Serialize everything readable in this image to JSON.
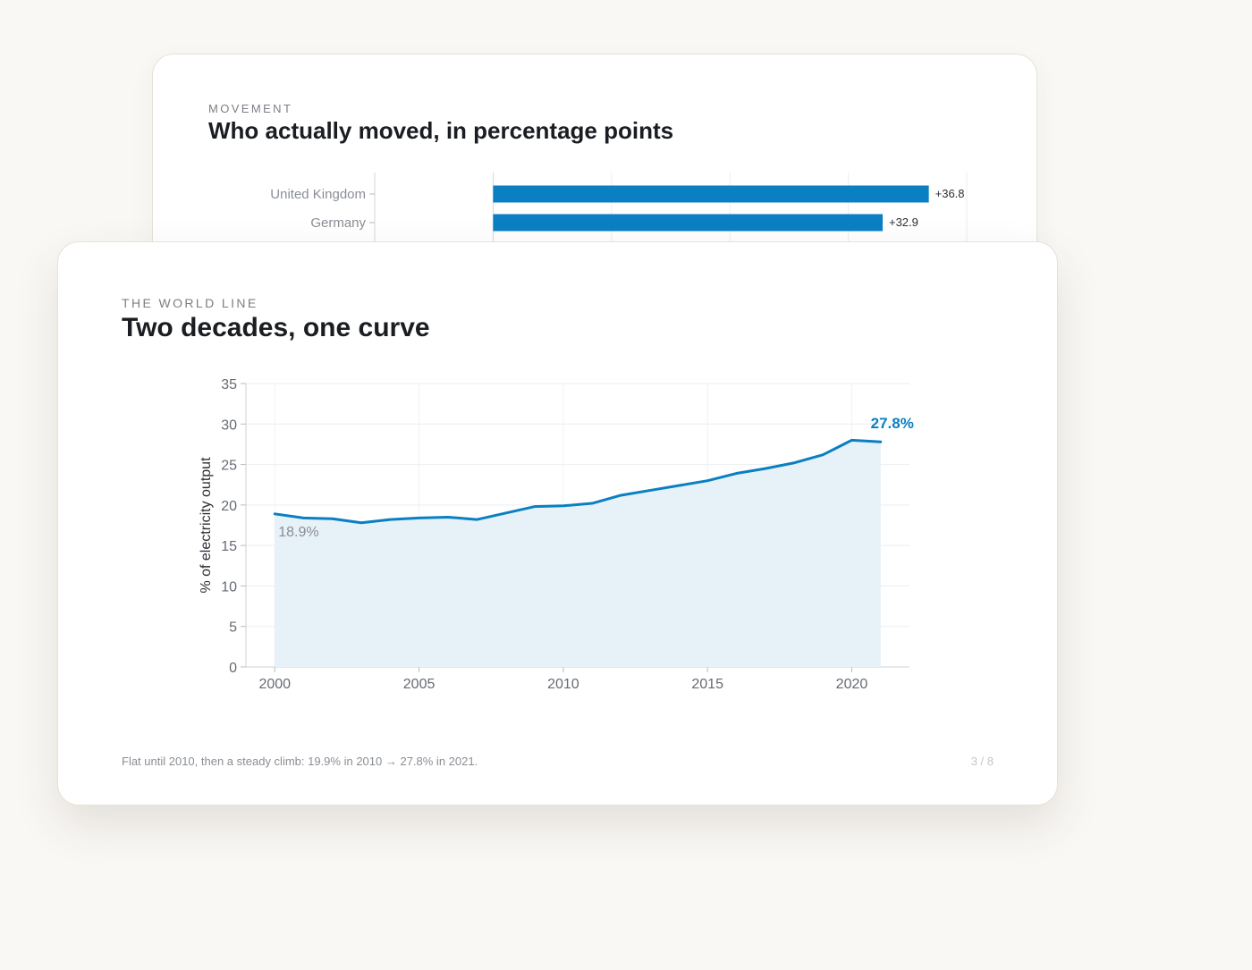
{
  "back_card": {
    "eyebrow": "MOVEMENT",
    "title": "Who actually moved, in percentage points",
    "chart_data": {
      "type": "bar",
      "orientation": "horizontal",
      "categories": [
        "United Kingdom",
        "Germany"
      ],
      "values": [
        36.8,
        32.9
      ],
      "value_labels": [
        "+36.8",
        "+32.9"
      ],
      "xlim": [
        -10,
        40
      ],
      "color": "#0a7fc2"
    }
  },
  "front_card": {
    "eyebrow": "THE WORLD LINE",
    "title": "Two decades, one curve",
    "caption": "Flat until 2010, then a steady climb: 19.9% in 2010 → 27.8% in 2021.",
    "page_indicator": "3 / 8",
    "chart_data": {
      "type": "area",
      "x": [
        2000,
        2001,
        2002,
        2003,
        2004,
        2005,
        2006,
        2007,
        2008,
        2009,
        2010,
        2011,
        2012,
        2013,
        2014,
        2015,
        2016,
        2017,
        2018,
        2019,
        2020,
        2021
      ],
      "y": [
        18.9,
        18.4,
        18.3,
        17.8,
        18.2,
        18.4,
        18.5,
        18.2,
        19.0,
        19.8,
        19.9,
        20.2,
        21.2,
        21.8,
        22.4,
        23.0,
        23.9,
        24.5,
        25.2,
        26.2,
        28.0,
        27.8
      ],
      "xlabel": "",
      "ylabel": "% of electricity output",
      "xticks": [
        2000,
        2005,
        2010,
        2015,
        2020
      ],
      "yticks": [
        0,
        5,
        10,
        15,
        20,
        25,
        30,
        35
      ],
      "xlim": [
        1999,
        2022
      ],
      "ylim": [
        0,
        35
      ],
      "grid": true,
      "annotations": [
        {
          "x": 2000,
          "y": 18.9,
          "label": "18.9%"
        },
        {
          "x": 2021,
          "y": 27.8,
          "label": "27.8%"
        }
      ],
      "line_color": "#0a7fc2",
      "fill_color": "#e6f1f8"
    }
  }
}
